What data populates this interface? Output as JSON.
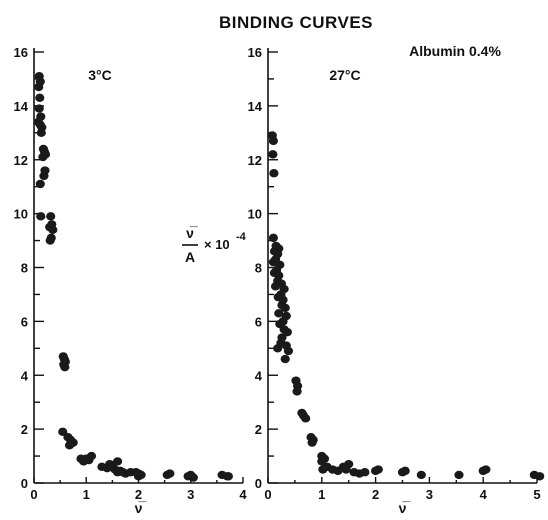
{
  "chart_data": {
    "title": "BINDING CURVES",
    "annotation": "Albumin 0.4%",
    "ylabel": {
      "numerator": "ν̅",
      "denominator": "A",
      "suffix": "× 10",
      "exponent": "-4"
    },
    "panels": [
      {
        "type": "scatter",
        "label": "3°C",
        "xlabel": "ν̅",
        "xlim": [
          0,
          4
        ],
        "ylim": [
          0,
          16
        ],
        "x_ticks": [
          "0",
          "1",
          "2",
          "3",
          "4"
        ],
        "y_ticks": [
          "0",
          "2",
          "4",
          "6",
          "8",
          "10",
          "12",
          "14",
          "16"
        ],
        "points": [
          [
            0.1,
            15.1
          ],
          [
            0.12,
            14.9
          ],
          [
            0.09,
            14.7
          ],
          [
            0.11,
            14.3
          ],
          [
            0.1,
            13.9
          ],
          [
            0.13,
            13.6
          ],
          [
            0.08,
            13.4
          ],
          [
            0.12,
            13.3
          ],
          [
            0.15,
            13.2
          ],
          [
            0.14,
            13.0
          ],
          [
            0.18,
            12.4
          ],
          [
            0.2,
            12.3
          ],
          [
            0.22,
            12.2
          ],
          [
            0.17,
            12.1
          ],
          [
            0.21,
            11.6
          ],
          [
            0.19,
            11.4
          ],
          [
            0.12,
            11.1
          ],
          [
            0.13,
            9.9
          ],
          [
            0.32,
            9.9
          ],
          [
            0.34,
            9.6
          ],
          [
            0.3,
            9.5
          ],
          [
            0.36,
            9.4
          ],
          [
            0.33,
            9.1
          ],
          [
            0.31,
            9.0
          ],
          [
            0.56,
            4.7
          ],
          [
            0.58,
            4.6
          ],
          [
            0.6,
            4.5
          ],
          [
            0.57,
            4.4
          ],
          [
            0.59,
            4.3
          ],
          [
            0.55,
            1.9
          ],
          [
            0.65,
            1.7
          ],
          [
            0.7,
            1.6
          ],
          [
            0.75,
            1.5
          ],
          [
            0.68,
            1.4
          ],
          [
            0.9,
            0.9
          ],
          [
            0.95,
            0.8
          ],
          [
            1.0,
            0.9
          ],
          [
            1.1,
            1.0
          ],
          [
            1.05,
            0.85
          ],
          [
            1.3,
            0.6
          ],
          [
            1.4,
            0.55
          ],
          [
            1.45,
            0.7
          ],
          [
            1.5,
            0.6
          ],
          [
            1.55,
            0.5
          ],
          [
            1.6,
            0.8
          ],
          [
            1.6,
            0.4
          ],
          [
            1.65,
            0.45
          ],
          [
            1.7,
            0.4
          ],
          [
            1.75,
            0.35
          ],
          [
            1.85,
            0.4
          ],
          [
            1.95,
            0.4
          ],
          [
            2.0,
            0.35
          ],
          [
            2.0,
            0.25
          ],
          [
            2.05,
            0.3
          ],
          [
            2.55,
            0.3
          ],
          [
            2.6,
            0.35
          ],
          [
            2.95,
            0.25
          ],
          [
            3.0,
            0.3
          ],
          [
            3.05,
            0.2
          ],
          [
            3.6,
            0.3
          ],
          [
            3.7,
            0.25
          ],
          [
            3.72,
            0.25
          ]
        ]
      },
      {
        "type": "scatter",
        "label": "27°C",
        "xlabel": "ν̅",
        "xlim": [
          0,
          5
        ],
        "ylim": [
          0,
          16
        ],
        "x_ticks": [
          "0",
          "1",
          "2",
          "3",
          "4",
          "5"
        ],
        "y_ticks": [
          "0",
          "2",
          "4",
          "6",
          "8",
          "10",
          "12",
          "14",
          "16"
        ],
        "points": [
          [
            0.08,
            12.9
          ],
          [
            0.1,
            12.7
          ],
          [
            0.09,
            12.2
          ],
          [
            0.11,
            11.5
          ],
          [
            0.1,
            9.1
          ],
          [
            0.15,
            8.8
          ],
          [
            0.2,
            8.7
          ],
          [
            0.12,
            8.6
          ],
          [
            0.18,
            8.5
          ],
          [
            0.14,
            8.3
          ],
          [
            0.1,
            8.2
          ],
          [
            0.22,
            8.1
          ],
          [
            0.16,
            7.9
          ],
          [
            0.12,
            7.8
          ],
          [
            0.2,
            7.7
          ],
          [
            0.18,
            7.5
          ],
          [
            0.25,
            7.4
          ],
          [
            0.14,
            7.3
          ],
          [
            0.3,
            7.2
          ],
          [
            0.24,
            7.0
          ],
          [
            0.19,
            6.9
          ],
          [
            0.28,
            6.8
          ],
          [
            0.26,
            6.6
          ],
          [
            0.32,
            6.5
          ],
          [
            0.2,
            6.3
          ],
          [
            0.34,
            6.2
          ],
          [
            0.28,
            6.0
          ],
          [
            0.22,
            5.9
          ],
          [
            0.3,
            5.7
          ],
          [
            0.36,
            5.6
          ],
          [
            0.26,
            5.4
          ],
          [
            0.24,
            5.2
          ],
          [
            0.18,
            5.0
          ],
          [
            0.34,
            5.1
          ],
          [
            0.38,
            4.9
          ],
          [
            0.32,
            4.6
          ],
          [
            0.52,
            3.8
          ],
          [
            0.55,
            3.6
          ],
          [
            0.54,
            3.4
          ],
          [
            0.63,
            2.6
          ],
          [
            0.66,
            2.5
          ],
          [
            0.7,
            2.4
          ],
          [
            0.8,
            1.7
          ],
          [
            0.84,
            1.6
          ],
          [
            0.82,
            1.5
          ],
          [
            1.0,
            1.0
          ],
          [
            1.05,
            0.9
          ],
          [
            1.0,
            0.8
          ],
          [
            1.1,
            0.6
          ],
          [
            1.02,
            0.5
          ],
          [
            1.2,
            0.5
          ],
          [
            1.3,
            0.45
          ],
          [
            1.4,
            0.6
          ],
          [
            1.45,
            0.5
          ],
          [
            1.5,
            0.7
          ],
          [
            1.6,
            0.4
          ],
          [
            1.7,
            0.35
          ],
          [
            1.8,
            0.4
          ],
          [
            2.0,
            0.45
          ],
          [
            2.05,
            0.5
          ],
          [
            2.5,
            0.4
          ],
          [
            2.55,
            0.45
          ],
          [
            2.85,
            0.3
          ],
          [
            3.55,
            0.3
          ],
          [
            4.0,
            0.45
          ],
          [
            4.05,
            0.5
          ],
          [
            4.95,
            0.3
          ],
          [
            5.05,
            0.25
          ]
        ]
      }
    ]
  }
}
